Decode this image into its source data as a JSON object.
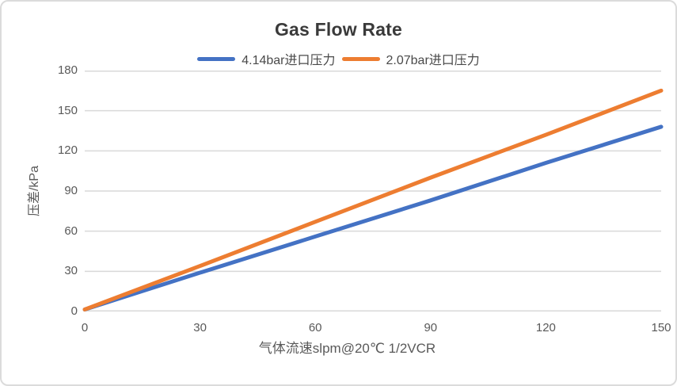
{
  "chart_data": {
    "type": "line",
    "title": "Gas Flow Rate",
    "xlabel": "气体流速slpm@20℃ 1/2VCR",
    "ylabel": "压差/kPa",
    "x": [
      0,
      30,
      60,
      90,
      120,
      150
    ],
    "series": [
      {
        "name": "4.14bar进口压力",
        "color": "#4472C4",
        "values": [
          1.5,
          29,
          56,
          83,
          111,
          138
        ]
      },
      {
        "name": "2.07bar进口压力",
        "color": "#ED7D31",
        "values": [
          1.5,
          34,
          67,
          100,
          132,
          165
        ]
      }
    ],
    "xlim": [
      0,
      150
    ],
    "ylim": [
      0,
      180
    ],
    "xticks": [
      0,
      30,
      60,
      90,
      120,
      150
    ],
    "yticks": [
      0,
      30,
      60,
      90,
      120,
      150,
      180
    ],
    "grid": "horizontal-only",
    "legend_position": "top",
    "line_width": 5,
    "colors": {
      "gridline": "#D9D9D9",
      "axis_text": "#595959",
      "title_text": "#3A3A3A",
      "card_border": "#DBDBDB",
      "background": "#FFFFFF"
    }
  }
}
